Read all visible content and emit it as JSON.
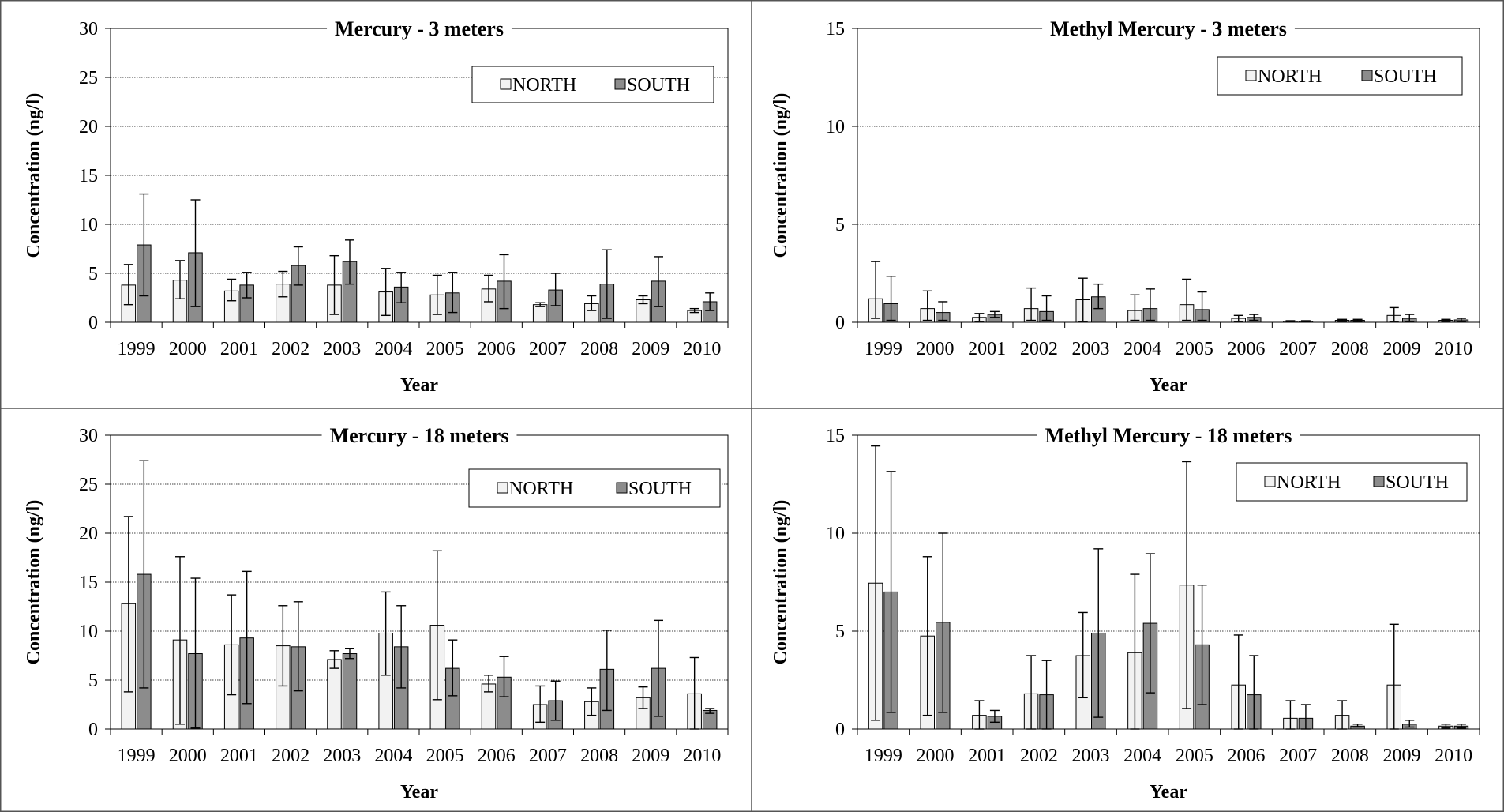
{
  "chart_data": [
    {
      "type": "bar",
      "title": "Mercury - 3 meters",
      "xlabel": "Year",
      "ylabel": "Concentration (ng/l)",
      "ylim": [
        0,
        30
      ],
      "yticks": [
        0,
        5,
        10,
        15,
        20,
        25,
        30
      ],
      "grid": true,
      "legend_position": "top-right",
      "categories": [
        "1999",
        "2000",
        "2001",
        "2002",
        "2003",
        "2004",
        "2005",
        "2006",
        "2007",
        "2008",
        "2009",
        "2010"
      ],
      "series": [
        {
          "name": "NORTH",
          "color": "#f2f2f2",
          "values": [
            3.8,
            4.3,
            3.2,
            3.9,
            3.8,
            3.1,
            2.8,
            3.4,
            1.8,
            1.9,
            2.3,
            1.2
          ],
          "error_low": [
            1.8,
            2.4,
            2.2,
            2.6,
            0.8,
            0.7,
            0.8,
            2.1,
            1.6,
            1.2,
            1.9,
            1.0
          ],
          "error_high": [
            5.9,
            6.3,
            4.4,
            5.2,
            6.8,
            5.5,
            4.8,
            4.8,
            2.0,
            2.7,
            2.7,
            1.4
          ]
        },
        {
          "name": "SOUTH",
          "color": "#8c8c8c",
          "values": [
            7.9,
            7.1,
            3.8,
            5.8,
            6.2,
            3.6,
            3.0,
            4.2,
            3.3,
            3.9,
            4.2,
            2.1
          ],
          "error_low": [
            2.7,
            1.6,
            2.5,
            3.8,
            3.9,
            2.0,
            1.0,
            1.4,
            1.7,
            0.4,
            1.6,
            1.2
          ],
          "error_high": [
            13.1,
            12.5,
            5.1,
            7.7,
            8.4,
            5.1,
            5.1,
            6.9,
            5.0,
            7.4,
            6.7,
            3.0
          ]
        }
      ]
    },
    {
      "type": "bar",
      "title": "Methyl Mercury - 3 meters",
      "xlabel": "Year",
      "ylabel": "Concentration (ng/l)",
      "ylim": [
        0,
        15
      ],
      "yticks": [
        0,
        5,
        10,
        15
      ],
      "grid": true,
      "legend_position": "top-right",
      "categories": [
        "1999",
        "2000",
        "2001",
        "2002",
        "2003",
        "2004",
        "2005",
        "2006",
        "2007",
        "2008",
        "2009",
        "2010"
      ],
      "series": [
        {
          "name": "NORTH",
          "color": "#f2f2f2",
          "values": [
            1.2,
            0.7,
            0.25,
            0.7,
            1.15,
            0.6,
            0.9,
            0.2,
            0.05,
            0.1,
            0.35,
            0.1
          ],
          "error_low": [
            0.2,
            0.1,
            0.05,
            0.1,
            0.05,
            0.1,
            0.1,
            0.05,
            0.02,
            0.05,
            0.05,
            0.05
          ],
          "error_high": [
            3.1,
            1.6,
            0.45,
            1.75,
            2.25,
            1.4,
            2.2,
            0.35,
            0.08,
            0.15,
            0.75,
            0.15
          ]
        },
        {
          "name": "SOUTH",
          "color": "#8c8c8c",
          "values": [
            0.95,
            0.5,
            0.4,
            0.55,
            1.3,
            0.7,
            0.65,
            0.25,
            0.05,
            0.1,
            0.2,
            0.12
          ],
          "error_low": [
            0.1,
            0.1,
            0.25,
            0.1,
            0.7,
            0.1,
            0.1,
            0.1,
            0.02,
            0.05,
            0.05,
            0.05
          ],
          "error_high": [
            2.35,
            1.05,
            0.55,
            1.35,
            1.95,
            1.7,
            1.55,
            0.4,
            0.08,
            0.15,
            0.4,
            0.2
          ]
        }
      ]
    },
    {
      "type": "bar",
      "title": "Mercury - 18 meters",
      "xlabel": "Year",
      "ylabel": "Concentration (ng/l)",
      "ylim": [
        0,
        30
      ],
      "yticks": [
        0,
        5,
        10,
        15,
        20,
        25,
        30
      ],
      "grid": true,
      "legend_position": "top-right",
      "categories": [
        "1999",
        "2000",
        "2001",
        "2002",
        "2003",
        "2004",
        "2005",
        "2006",
        "2007",
        "2008",
        "2009",
        "2010"
      ],
      "series": [
        {
          "name": "NORTH",
          "color": "#f2f2f2",
          "values": [
            12.8,
            9.1,
            8.6,
            8.5,
            7.1,
            9.8,
            10.6,
            4.6,
            2.5,
            2.8,
            3.2,
            3.6
          ],
          "error_low": [
            3.8,
            0.5,
            3.5,
            4.4,
            6.2,
            5.5,
            3.0,
            3.8,
            0.7,
            1.4,
            2.1,
            0.0
          ],
          "error_high": [
            21.7,
            17.6,
            13.7,
            12.6,
            8.0,
            14.0,
            18.2,
            5.5,
            4.4,
            4.2,
            4.3,
            7.3
          ]
        },
        {
          "name": "SOUTH",
          "color": "#8c8c8c",
          "values": [
            15.8,
            7.7,
            9.3,
            8.4,
            7.7,
            8.4,
            6.2,
            5.3,
            2.9,
            6.1,
            6.2,
            1.9
          ],
          "error_low": [
            4.2,
            0.1,
            2.6,
            3.9,
            7.2,
            4.2,
            3.4,
            3.3,
            0.9,
            1.9,
            1.3,
            1.6
          ],
          "error_high": [
            27.4,
            15.4,
            16.1,
            13.0,
            8.2,
            12.6,
            9.1,
            7.4,
            4.9,
            10.1,
            11.1,
            2.1
          ]
        }
      ]
    },
    {
      "type": "bar",
      "title": "Methyl Mercury - 18 meters",
      "xlabel": "Year",
      "ylabel": "Concentration (ng/l)",
      "ylim": [
        0,
        15
      ],
      "yticks": [
        0,
        5,
        10,
        15
      ],
      "grid": true,
      "legend_position": "top-right",
      "categories": [
        "1999",
        "2000",
        "2001",
        "2002",
        "2003",
        "2004",
        "2005",
        "2006",
        "2007",
        "2008",
        "2009",
        "2010"
      ],
      "series": [
        {
          "name": "NORTH",
          "color": "#f2f2f2",
          "values": [
            7.45,
            4.75,
            0.7,
            1.8,
            3.75,
            3.9,
            7.35,
            2.25,
            0.55,
            0.7,
            2.25,
            0.15
          ],
          "error_low": [
            0.45,
            0.7,
            0.0,
            0.0,
            1.6,
            0.0,
            1.05,
            0.0,
            0.0,
            0.0,
            0.0,
            0.05
          ],
          "error_high": [
            14.45,
            8.8,
            1.45,
            3.75,
            5.95,
            7.9,
            13.65,
            4.8,
            1.45,
            1.45,
            5.35,
            0.25
          ]
        },
        {
          "name": "SOUTH",
          "color": "#8c8c8c",
          "values": [
            7.0,
            5.45,
            0.65,
            1.75,
            4.9,
            5.4,
            4.3,
            1.75,
            0.55,
            0.15,
            0.25,
            0.15
          ],
          "error_low": [
            0.85,
            0.85,
            0.35,
            0.0,
            0.6,
            1.85,
            1.25,
            0.0,
            0.0,
            0.1,
            0.1,
            0.05
          ],
          "error_high": [
            13.15,
            10.0,
            0.95,
            3.5,
            9.2,
            8.95,
            7.35,
            3.75,
            1.25,
            0.25,
            0.45,
            0.25
          ]
        }
      ]
    }
  ]
}
